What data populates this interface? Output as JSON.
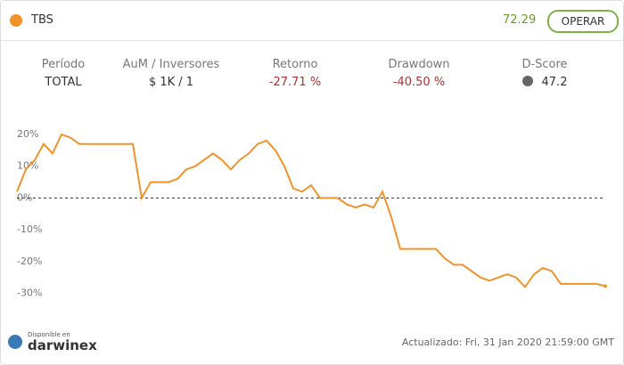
{
  "header": {
    "name": "TBS",
    "price": "72.29",
    "button": "OPERAR"
  },
  "stats": [
    {
      "label": "Período",
      "value": "TOTAL"
    },
    {
      "label": "AuM / Inversores",
      "value": "$ 1K / 1"
    },
    {
      "label": "Retorno",
      "value": "-27.71 %"
    },
    {
      "label": "Drawdown",
      "value": "-40.50 %"
    },
    {
      "label": "D-Score",
      "value": "47.2"
    }
  ],
  "footer": {
    "available": "Disponible en",
    "brand": "darwinex",
    "updated": "Actualizado: Fri, 31 Jan 2020 21:59:00 GMT"
  },
  "chart_data": {
    "type": "line",
    "color": "#f0932b",
    "values": [
      2,
      9,
      12,
      17,
      14,
      20,
      19,
      17,
      17,
      17,
      17,
      17,
      17,
      17,
      0,
      5,
      5,
      5,
      6,
      9,
      10,
      12,
      14,
      12,
      9,
      12,
      14,
      17,
      18,
      15,
      10,
      3,
      2,
      4,
      0,
      0,
      0,
      -2,
      -3,
      -2,
      -3,
      2,
      -6,
      -16,
      -16,
      -16,
      -16,
      -16,
      -19,
      -21,
      -21,
      -23,
      -25,
      -26,
      -25,
      -24,
      -25,
      -28,
      -24,
      -22,
      -23,
      -27,
      -27,
      -27,
      -27,
      -27,
      -27.71
    ],
    "ylim": [
      -36,
      27
    ],
    "yticks": [
      {
        "value": 20,
        "label": "20%"
      },
      {
        "value": 10,
        "label": "10%"
      },
      {
        "value": 0,
        "label": "0%"
      },
      {
        "value": -10,
        "label": "-10%"
      },
      {
        "value": -20,
        "label": "-20%"
      },
      {
        "value": -30,
        "label": "-30%"
      }
    ]
  }
}
